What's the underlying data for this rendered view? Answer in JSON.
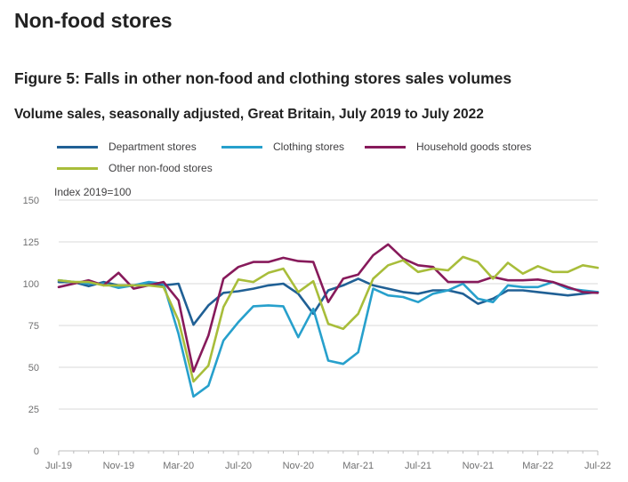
{
  "page": {
    "heading": "Non-food stores",
    "figure_title": "Figure 5: Falls in other non-food and clothing stores sales volumes",
    "figure_subtitle": "Volume sales, seasonally adjusted, Great Britain, July 2019 to July 2022"
  },
  "colors": {
    "department": "#206095",
    "clothing": "#27a0cc",
    "household": "#871a5b",
    "other": "#a8bd3a",
    "gridline": "#d9d9d9",
    "axis_text": "#707071"
  },
  "chart_data": {
    "type": "line",
    "title": "Figure 5: Falls in other non-food and clothing stores sales volumes",
    "subtitle": "Volume sales, seasonally adjusted, Great Britain, July 2019 to July 2022",
    "ylabel": "Index 2019=100",
    "xlabel": "",
    "ylim": [
      0,
      150
    ],
    "yticks": [
      0,
      25,
      50,
      75,
      100,
      125,
      150
    ],
    "grid": true,
    "legend_position": "top",
    "x": [
      "Jul-19",
      "Aug-19",
      "Sep-19",
      "Oct-19",
      "Nov-19",
      "Dec-19",
      "Jan-20",
      "Feb-20",
      "Mar-20",
      "Apr-20",
      "May-20",
      "Jun-20",
      "Jul-20",
      "Aug-20",
      "Sep-20",
      "Oct-20",
      "Nov-20",
      "Dec-20",
      "Jan-21",
      "Feb-21",
      "Mar-21",
      "Apr-21",
      "May-21",
      "Jun-21",
      "Jul-21",
      "Aug-21",
      "Sep-21",
      "Oct-21",
      "Nov-21",
      "Dec-21",
      "Jan-22",
      "Feb-22",
      "Mar-22",
      "Apr-22",
      "May-22",
      "Jun-22",
      "Jul-22"
    ],
    "xtick_labels": [
      "Jul-19",
      "Nov-19",
      "Mar-20",
      "Jul-20",
      "Nov-20",
      "Mar-21",
      "Jul-21",
      "Nov-21",
      "Mar-22",
      "Jul-22"
    ],
    "series": [
      {
        "name": "Department stores",
        "color_key": "department",
        "values": [
          101,
          101,
          98.5,
          101,
          99,
          99,
          100,
          99,
          100,
          75.5,
          87,
          94.5,
          95.5,
          97,
          99,
          100,
          94,
          82,
          96,
          99,
          103,
          99,
          97,
          95,
          94,
          96,
          96,
          94,
          88,
          91,
          96,
          96,
          95,
          94,
          93,
          94,
          95
        ]
      },
      {
        "name": "Clothing stores",
        "color_key": "clothing",
        "values": [
          102,
          101,
          100,
          100,
          97.5,
          99,
          101,
          100,
          70,
          32.5,
          39,
          66,
          77,
          86.5,
          87,
          86.5,
          68,
          85,
          54,
          52,
          59,
          97,
          93,
          92,
          89,
          94,
          96,
          100,
          91,
          89,
          99,
          98,
          98,
          101,
          97,
          96,
          95
        ]
      },
      {
        "name": "Household goods stores",
        "color_key": "household",
        "values": [
          98,
          100,
          102,
          99,
          106.5,
          97,
          99,
          101,
          90,
          47.5,
          69,
          103,
          110,
          113,
          113,
          115.5,
          113.5,
          113,
          89,
          103,
          105.5,
          117,
          123.5,
          115,
          111,
          110,
          101,
          101,
          101,
          104,
          102,
          102,
          102.5,
          101,
          98,
          95,
          94.5
        ]
      },
      {
        "name": "Other non-food stores",
        "color_key": "other",
        "values": [
          102,
          101,
          101,
          99,
          99,
          99,
          99,
          98,
          78,
          41.5,
          51,
          86,
          102.5,
          101,
          106.5,
          109,
          95,
          101.5,
          76,
          73,
          82,
          103,
          111,
          114,
          107,
          109,
          108,
          116,
          113,
          103,
          112.5,
          106,
          110.5,
          107,
          107,
          111,
          109.5
        ]
      }
    ]
  }
}
